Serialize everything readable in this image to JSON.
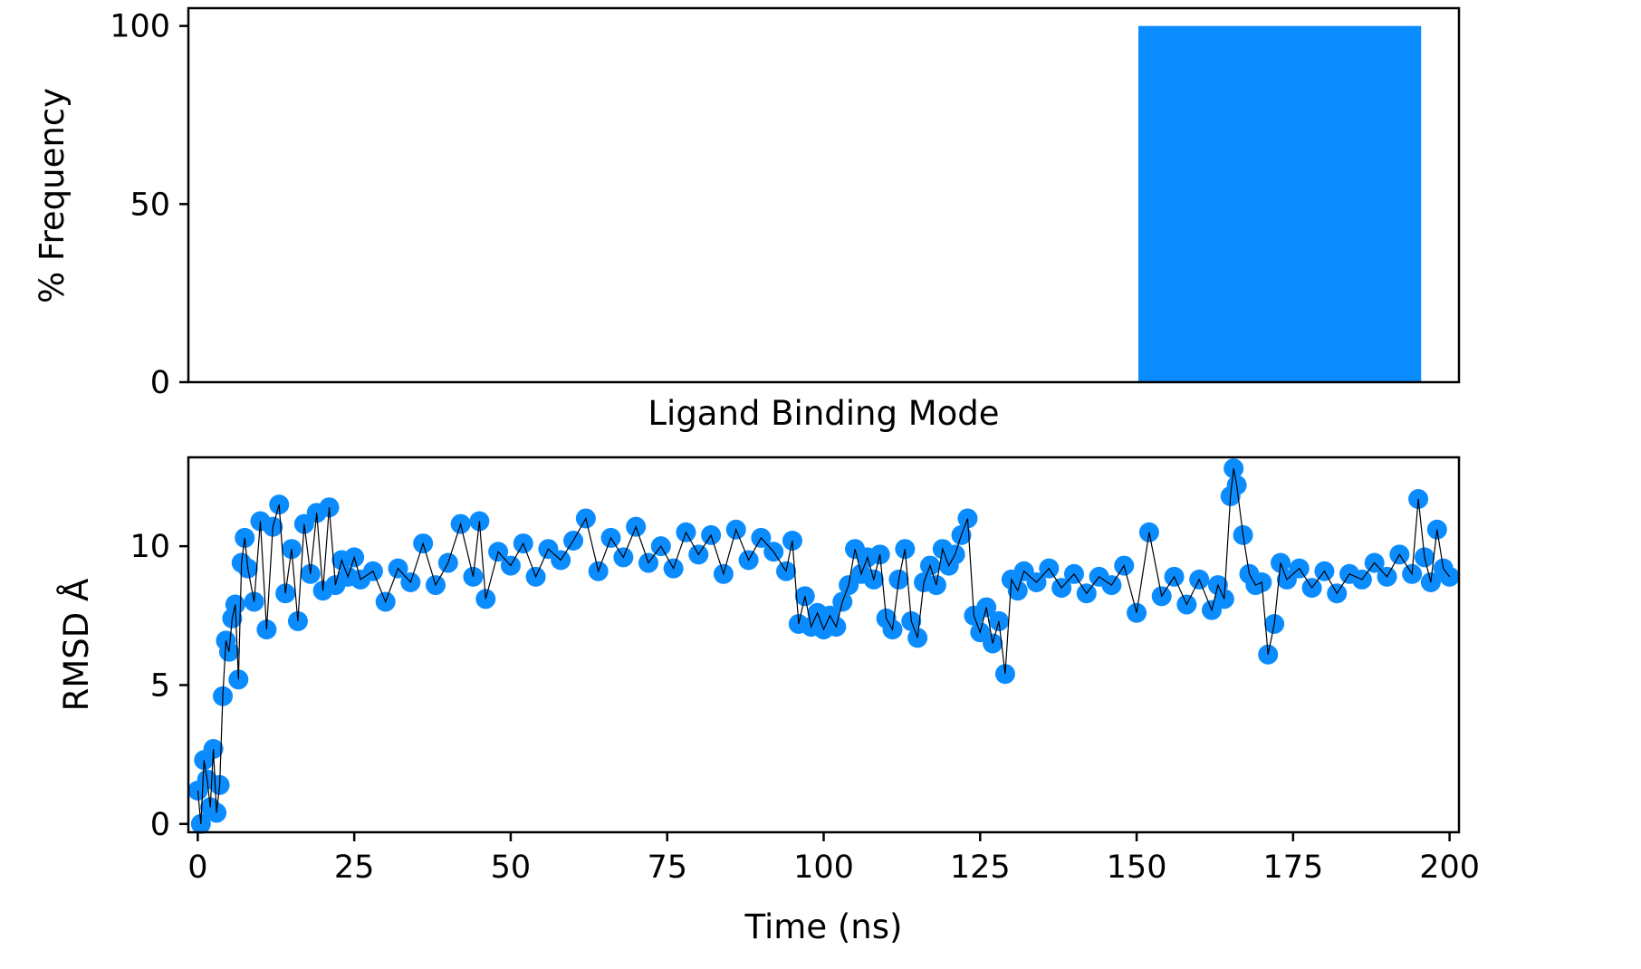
{
  "colors": {
    "bar": "#0a8cff",
    "scatter": "#0a8cff",
    "line": "#000000",
    "axes": "#000000",
    "background": "#ffffff"
  },
  "chart_data": [
    {
      "type": "bar",
      "xlabel": "Ligand Binding Mode",
      "ylabel": "% Frequency",
      "ylim": [
        0,
        105
      ],
      "yticks": [
        0,
        50,
        100
      ],
      "x_tick_labels_shown": false,
      "categories": [
        "",
        "",
        "",
        ""
      ],
      "values": [
        0,
        0,
        0,
        100
      ],
      "grid": false
    },
    {
      "type": "scatter",
      "xlabel": "Time (ns)",
      "ylabel": "RMSD Å",
      "xlim": [
        -1.5,
        201.5
      ],
      "ylim": [
        -0.3,
        13.2
      ],
      "xticks": [
        0,
        25,
        50,
        75,
        100,
        125,
        150,
        175,
        200
      ],
      "yticks": [
        0,
        5,
        10
      ],
      "grid": false,
      "overlay": "thin black line through all points",
      "series": [
        {
          "x": [
            0,
            0.5,
            1,
            1.5,
            2,
            2.5,
            3,
            3.5,
            4,
            4.5,
            5,
            5.5,
            6,
            6.5,
            7,
            7.5,
            8,
            9,
            10,
            11,
            12,
            13,
            14,
            15,
            16,
            17,
            18,
            19,
            20,
            21,
            22,
            23,
            24,
            25,
            26,
            28,
            30,
            32,
            34,
            36,
            38,
            40,
            42,
            44,
            45,
            46,
            48,
            50,
            52,
            54,
            56,
            58,
            60,
            62,
            64,
            66,
            68,
            70,
            72,
            74,
            76,
            78,
            80,
            82,
            84,
            86,
            88,
            90,
            92,
            94,
            95,
            96,
            97,
            98,
            99,
            100,
            101,
            102,
            103,
            104,
            105,
            106,
            107,
            108,
            109,
            110,
            111,
            112,
            113,
            114,
            115,
            116,
            117,
            118,
            119,
            120,
            121,
            122,
            123,
            124,
            125,
            126,
            127,
            128,
            129,
            130,
            131,
            132,
            134,
            136,
            138,
            140,
            142,
            144,
            146,
            148,
            150,
            152,
            154,
            156,
            158,
            160,
            162,
            163,
            164,
            165,
            165.5,
            166,
            167,
            168,
            169,
            170,
            171,
            172,
            173,
            174,
            176,
            178,
            180,
            182,
            184,
            186,
            188,
            190,
            192,
            194,
            195,
            196,
            197,
            198,
            199,
            200
          ],
          "y": [
            1.2,
            0.0,
            2.3,
            1.6,
            0.6,
            2.7,
            0.4,
            1.4,
            4.6,
            6.6,
            6.2,
            7.4,
            7.9,
            5.2,
            9.4,
            10.3,
            9.2,
            8.0,
            10.9,
            7.0,
            10.7,
            11.5,
            8.3,
            9.9,
            7.3,
            10.8,
            9.0,
            11.2,
            8.4,
            11.4,
            8.6,
            9.5,
            8.9,
            9.6,
            8.8,
            9.1,
            8.0,
            9.2,
            8.7,
            10.1,
            8.6,
            9.4,
            10.8,
            8.9,
            10.9,
            8.1,
            9.8,
            9.3,
            10.1,
            8.9,
            9.9,
            9.5,
            10.2,
            11.0,
            9.1,
            10.3,
            9.6,
            10.7,
            9.4,
            10.0,
            9.2,
            10.5,
            9.7,
            10.4,
            9.0,
            10.6,
            9.5,
            10.3,
            9.8,
            9.1,
            10.2,
            7.2,
            8.2,
            7.1,
            7.6,
            7.0,
            7.5,
            7.1,
            8.0,
            8.6,
            9.9,
            9.0,
            9.6,
            8.8,
            9.7,
            7.4,
            7.0,
            8.8,
            9.9,
            7.3,
            6.7,
            8.7,
            9.3,
            8.6,
            9.9,
            9.3,
            9.7,
            10.4,
            11.0,
            7.5,
            6.9,
            7.8,
            6.5,
            7.3,
            5.4,
            8.8,
            8.4,
            9.1,
            8.7,
            9.2,
            8.5,
            9.0,
            8.3,
            8.9,
            8.6,
            9.3,
            7.6,
            10.5,
            8.2,
            8.9,
            7.9,
            8.8,
            7.7,
            8.6,
            8.1,
            11.8,
            12.8,
            12.2,
            10.4,
            9.0,
            8.6,
            8.7,
            6.1,
            7.2,
            9.4,
            8.8,
            9.2,
            8.5,
            9.1,
            8.3,
            9.0,
            8.8,
            9.4,
            8.9,
            9.7,
            9.0,
            11.7,
            9.6,
            8.7,
            10.6,
            9.2,
            8.9
          ]
        }
      ]
    }
  ]
}
